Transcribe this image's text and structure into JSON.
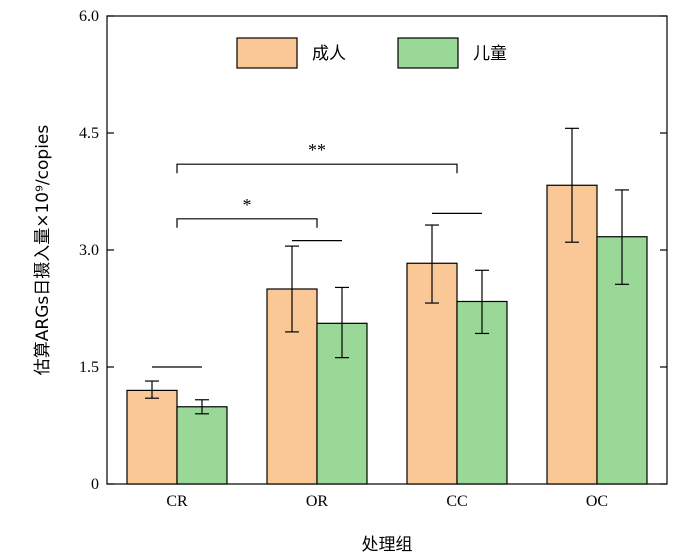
{
  "chart_data": {
    "type": "bar",
    "xlabel": "处理组",
    "ylabel": "估算ARGs日摄入量×10⁹/copies",
    "ylim": [
      0,
      6.0
    ],
    "yticks": [
      "0",
      "1.5",
      "3.0",
      "4.5",
      "6.0"
    ],
    "categories": [
      "CR",
      "OR",
      "CC",
      "OC"
    ],
    "series": [
      {
        "name": "成人",
        "color": "#f9c896",
        "values": [
          1.2,
          2.5,
          2.83,
          3.83
        ],
        "error_low": [
          1.1,
          1.95,
          2.32,
          3.1
        ],
        "error_high": [
          1.32,
          3.05,
          3.32,
          4.56
        ]
      },
      {
        "name": "儿童",
        "color": "#9ad898",
        "values": [
          0.99,
          2.06,
          2.34,
          3.17
        ],
        "error_low": [
          0.9,
          1.62,
          1.93,
          2.56
        ],
        "error_high": [
          1.08,
          2.52,
          2.74,
          3.77
        ]
      }
    ],
    "legend_position": "top-center",
    "grid": false,
    "annotations": [
      {
        "text": "*",
        "from": "CR",
        "to": "OR",
        "y": 3.4
      },
      {
        "text": "**",
        "from": "CR",
        "to": "CC",
        "y": 4.1
      }
    ],
    "pair_lines": [
      {
        "category": "CR",
        "y": 1.5
      },
      {
        "category": "OR",
        "y": 3.12
      },
      {
        "category": "CC",
        "y": 3.47
      }
    ]
  }
}
